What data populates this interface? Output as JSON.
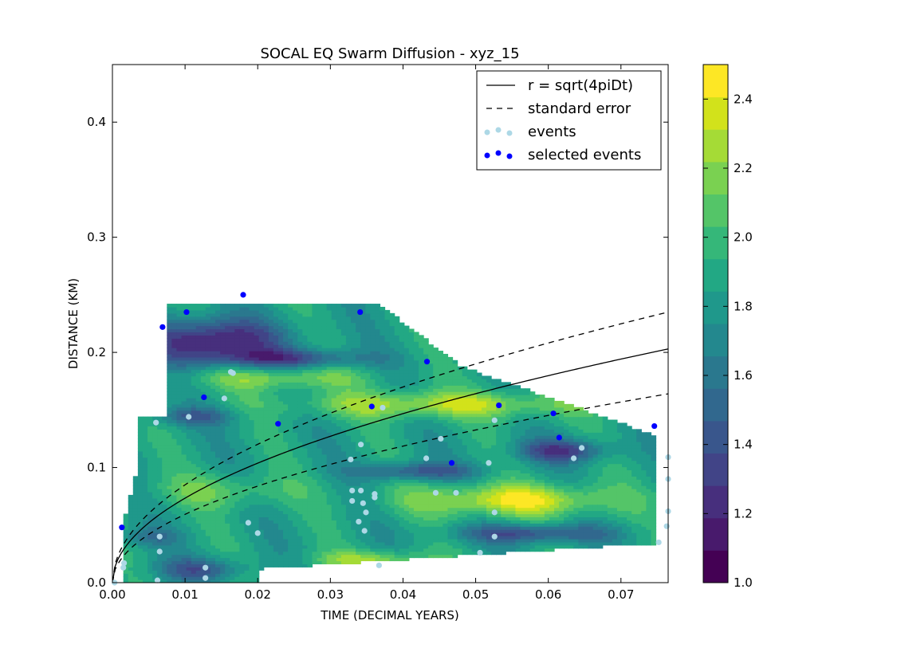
{
  "chart_data": {
    "type": "scatter",
    "title": "SOCAL EQ Swarm Diffusion - xyz_15",
    "xlabel": "TIME (DECIMAL YEARS)",
    "ylabel": "DISTANCE (KM)",
    "xlim": [
      0.0,
      0.0765
    ],
    "ylim": [
      0.0,
      0.45
    ],
    "xticks": [
      "0.00",
      "0.01",
      "0.02",
      "0.03",
      "0.04",
      "0.05",
      "0.06",
      "0.07"
    ],
    "yticks": [
      "0.0",
      "0.1",
      "0.2",
      "0.3",
      "0.4"
    ],
    "grid": false,
    "legend_position": "top-right",
    "legend": [
      {
        "label": "r = sqrt(4piDt)",
        "style": "solid-line",
        "color": "#000000"
      },
      {
        "label": "standard error",
        "style": "dashed-line",
        "color": "#000000"
      },
      {
        "label": "events",
        "style": "markers",
        "color": "#add8e6"
      },
      {
        "label": "selected events",
        "style": "markers",
        "color": "#0000ff"
      }
    ],
    "diffusion_curve": {
      "r_at_max_t": 0.203,
      "upper_r_at_max_t": 0.235,
      "lower_r_at_max_t": 0.164
    },
    "colorbar": {
      "min": 1.0,
      "max": 2.5,
      "ticks": [
        "1.0",
        "1.2",
        "1.4",
        "1.6",
        "1.8",
        "2.0",
        "2.2",
        "2.4"
      ],
      "levels": [
        "#440154",
        "#481a6c",
        "#472f7d",
        "#414487",
        "#39568c",
        "#31688e",
        "#2a788e",
        "#23888e",
        "#1f988b",
        "#22a884",
        "#35b779",
        "#54c568",
        "#7ad151",
        "#a5db36",
        "#d2e21b",
        "#fde725"
      ]
    },
    "events": [
      [
        0.0003,
        0.0
      ],
      [
        0.0016,
        0.017
      ],
      [
        0.0015,
        0.013
      ],
      [
        0.0062,
        0.002
      ],
      [
        0.0065,
        0.04
      ],
      [
        0.0065,
        0.027
      ],
      [
        0.006,
        0.139
      ],
      [
        0.0105,
        0.144
      ],
      [
        0.0128,
        0.013
      ],
      [
        0.0128,
        0.004
      ],
      [
        0.0154,
        0.16
      ],
      [
        0.0163,
        0.183
      ],
      [
        0.0166,
        0.182
      ],
      [
        0.0187,
        0.052
      ],
      [
        0.02,
        0.043
      ],
      [
        0.0328,
        0.107
      ],
      [
        0.033,
        0.08
      ],
      [
        0.033,
        0.071
      ],
      [
        0.0342,
        0.08
      ],
      [
        0.0342,
        0.12
      ],
      [
        0.0345,
        0.069
      ],
      [
        0.0339,
        0.053
      ],
      [
        0.0349,
        0.061
      ],
      [
        0.0347,
        0.045
      ],
      [
        0.0361,
        0.077
      ],
      [
        0.0361,
        0.074
      ],
      [
        0.0367,
        0.015
      ],
      [
        0.0372,
        0.152
      ],
      [
        0.0432,
        0.108
      ],
      [
        0.0445,
        0.078
      ],
      [
        0.0452,
        0.125
      ],
      [
        0.0473,
        0.078
      ],
      [
        0.0506,
        0.026
      ],
      [
        0.0518,
        0.104
      ],
      [
        0.0526,
        0.141
      ],
      [
        0.0526,
        0.061
      ],
      [
        0.0526,
        0.04
      ],
      [
        0.0635,
        0.108
      ],
      [
        0.0646,
        0.117
      ],
      [
        0.0752,
        0.035
      ],
      [
        0.0763,
        0.049
      ],
      [
        0.0765,
        0.062
      ],
      [
        0.0765,
        0.09
      ],
      [
        0.0765,
        0.109
      ]
    ],
    "selected_events": [
      [
        0.0013,
        0.048
      ],
      [
        0.0069,
        0.222
      ],
      [
        0.0102,
        0.235
      ],
      [
        0.0126,
        0.161
      ],
      [
        0.018,
        0.25
      ],
      [
        0.0228,
        0.138
      ],
      [
        0.0341,
        0.235
      ],
      [
        0.0357,
        0.153
      ],
      [
        0.0433,
        0.192
      ],
      [
        0.0467,
        0.104
      ],
      [
        0.0532,
        0.154
      ],
      [
        0.0607,
        0.147
      ],
      [
        0.0615,
        0.126
      ],
      [
        0.0746,
        0.136
      ]
    ]
  }
}
